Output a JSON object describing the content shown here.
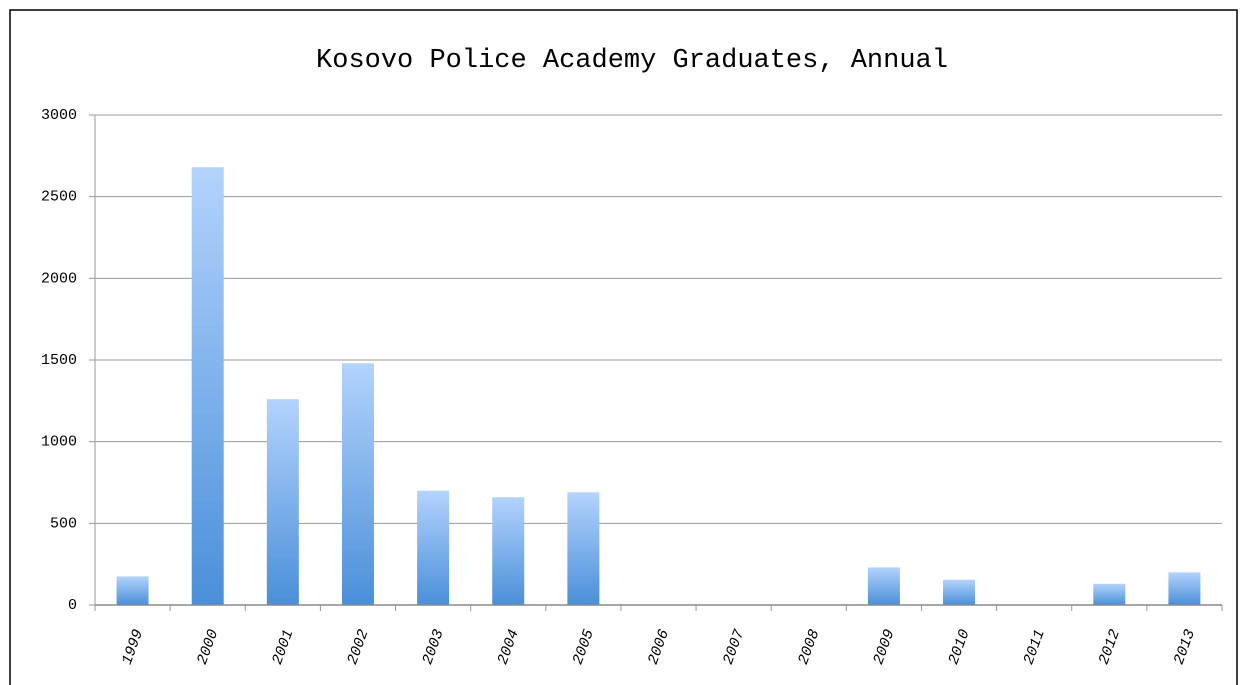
{
  "chart_data": {
    "type": "bar",
    "title": "Kosovo Police Academy Graduates, Annual",
    "categories": [
      "1999",
      "2000",
      "2001",
      "2002",
      "2003",
      "2004",
      "2005",
      "2006",
      "2007",
      "2008",
      "2009",
      "2010",
      "2011",
      "2012",
      "2013"
    ],
    "values": [
      175,
      2680,
      1260,
      1480,
      700,
      660,
      690,
      0,
      0,
      0,
      230,
      155,
      0,
      130,
      200
    ],
    "gradient": [
      "#b3d3fc",
      "#4a8fd9"
    ],
    "ylim": [
      0,
      3000
    ],
    "yticks": [
      0,
      500,
      1000,
      1500,
      2000,
      2500,
      3000
    ],
    "grid": true
  }
}
